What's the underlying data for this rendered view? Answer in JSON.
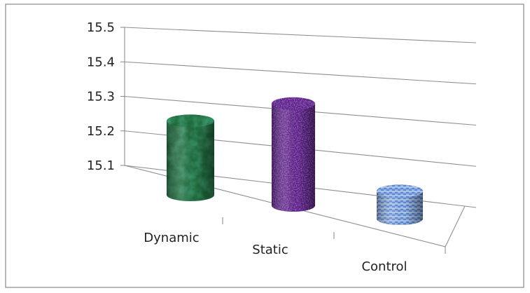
{
  "chart_data": {
    "type": "bar",
    "style": "3d-cylinder",
    "categories": [
      "Dynamic",
      "Static",
      "Control"
    ],
    "values": [
      15.34,
      15.43,
      15.19
    ],
    "ylim": [
      15.1,
      15.5
    ],
    "yticks": [
      "15.1",
      "15.2",
      "15.3",
      "15.4",
      "15.5"
    ],
    "grid": true,
    "legend": "none",
    "colors": [
      "#1f6a3c",
      "#5a1c86",
      "#7fa6e0"
    ],
    "textures": [
      "green-marble",
      "purple-granite",
      "blue-woven"
    ]
  }
}
